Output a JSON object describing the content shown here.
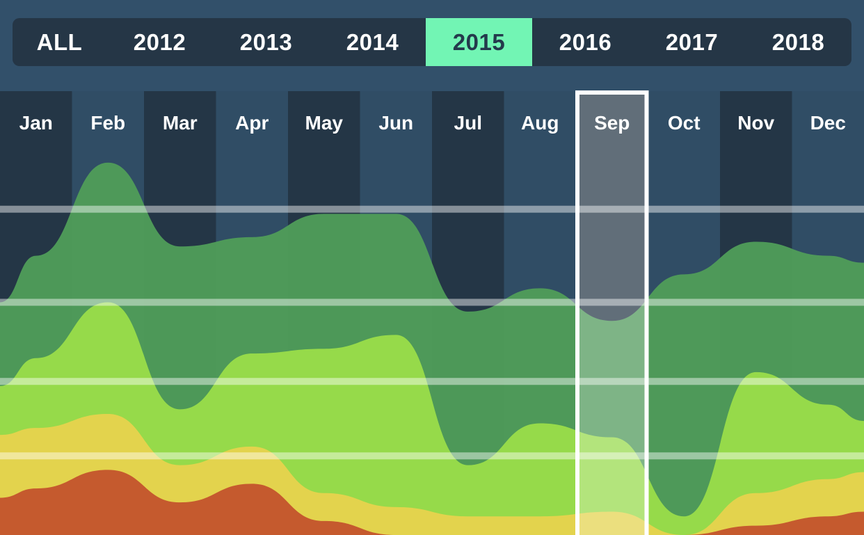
{
  "year_filter": {
    "tabs": [
      {
        "label": "ALL"
      },
      {
        "label": "2012"
      },
      {
        "label": "2013"
      },
      {
        "label": "2014"
      },
      {
        "label": "2015",
        "active": true
      },
      {
        "label": "2016"
      },
      {
        "label": "2017"
      },
      {
        "label": "2018"
      }
    ],
    "active_bg": "#72f5b4"
  },
  "chart_data": {
    "type": "area",
    "stacked": true,
    "categories": [
      "Jan",
      "Feb",
      "Mar",
      "Apr",
      "May",
      "Jun",
      "Jul",
      "Aug",
      "Sep",
      "Oct",
      "Nov",
      "Dec"
    ],
    "selected_category": "Sep",
    "ylim": [
      0,
      100
    ],
    "grid": true,
    "series": [
      {
        "color": "#c4542d",
        "values": [
          10,
          14,
          7,
          11,
          3,
          0,
          0,
          0,
          0,
          0,
          2,
          4
        ]
      },
      {
        "color": "#e6d24d",
        "values": [
          13,
          12,
          8,
          8,
          6,
          6,
          4,
          4,
          5,
          0,
          7,
          8
        ]
      },
      {
        "color": "#99dd4a",
        "values": [
          15,
          24,
          12,
          20,
          31,
          37,
          11,
          20,
          16,
          4,
          26,
          16
        ]
      },
      {
        "color": "#4f9c58",
        "values": [
          22,
          30,
          35,
          25,
          29,
          26,
          33,
          29,
          25,
          52,
          28,
          32
        ]
      }
    ]
  }
}
